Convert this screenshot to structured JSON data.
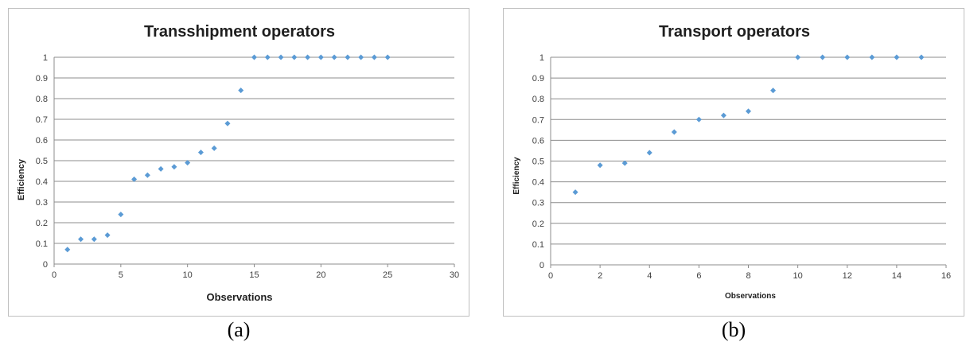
{
  "chart_data": [
    {
      "type": "scatter",
      "title": "Transshipment operators",
      "xlabel": "Observations",
      "ylabel": "Efficiency",
      "caption": "(a)",
      "xlim": [
        0,
        30
      ],
      "ylim": [
        0,
        1
      ],
      "xticks": [
        0,
        5,
        10,
        15,
        20,
        25,
        30
      ],
      "yticks": [
        0,
        0.1,
        0.2,
        0.3,
        0.4,
        0.5,
        0.6,
        0.7,
        0.8,
        0.9,
        1
      ],
      "grid": "horizontal",
      "marker_color": "#5b9bd5",
      "x": [
        1,
        2,
        3,
        4,
        5,
        6,
        7,
        8,
        9,
        10,
        11,
        12,
        13,
        14,
        15,
        16,
        17,
        18,
        19,
        20,
        21,
        22,
        23,
        24,
        25
      ],
      "y": [
        0.07,
        0.12,
        0.12,
        0.14,
        0.24,
        0.41,
        0.43,
        0.46,
        0.47,
        0.49,
        0.54,
        0.56,
        0.68,
        0.84,
        1,
        1,
        1,
        1,
        1,
        1,
        1,
        1,
        1,
        1,
        1
      ]
    },
    {
      "type": "scatter",
      "title": "Transport operators",
      "xlabel": "Observations",
      "ylabel": "Efficiency",
      "caption": "(b)",
      "xlim": [
        0,
        16
      ],
      "ylim": [
        0,
        1
      ],
      "xticks": [
        0,
        2,
        4,
        6,
        8,
        10,
        12,
        14,
        16
      ],
      "yticks": [
        0,
        0.1,
        0.2,
        0.3,
        0.4,
        0.5,
        0.6,
        0.7,
        0.8,
        0.9,
        1
      ],
      "grid": "horizontal",
      "marker_color": "#5b9bd5",
      "x": [
        1,
        2,
        3,
        4,
        5,
        6,
        7,
        8,
        9,
        10,
        11,
        12,
        13,
        14,
        15
      ],
      "y": [
        0.35,
        0.48,
        0.49,
        0.54,
        0.64,
        0.7,
        0.72,
        0.74,
        0.84,
        1,
        1,
        1,
        1,
        1,
        1
      ]
    }
  ]
}
